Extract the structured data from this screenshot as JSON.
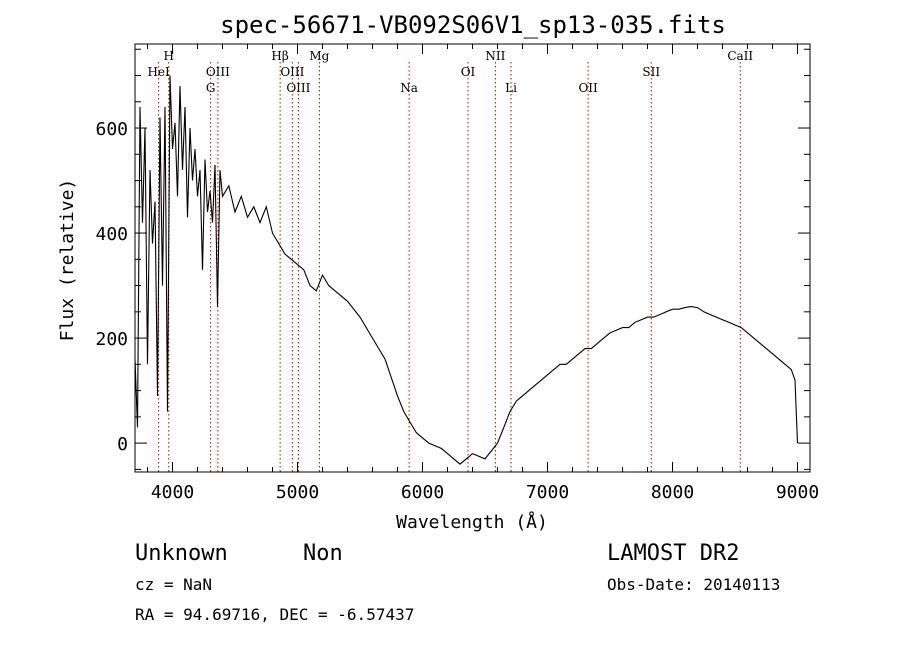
{
  "chart_data": {
    "type": "line",
    "title": "spec-56671-VB092S06V1_sp13-035.fits",
    "xlabel": "Wavelength (Å)",
    "ylabel": "Flux (relative)",
    "xlim": [
      3700,
      9100
    ],
    "ylim": [
      -55,
      760
    ],
    "x_ticks": [
      4000,
      5000,
      6000,
      7000,
      8000,
      9000
    ],
    "y_ticks": [
      0,
      200,
      400,
      600
    ],
    "grid": false,
    "spectral_lines": [
      {
        "name": "H",
        "wavelength": 3970
      },
      {
        "name": "HeI",
        "wavelength": 3889
      },
      {
        "name": "OIII",
        "wavelength": 4363
      },
      {
        "name": "G",
        "wavelength": 4305
      },
      {
        "name": "Hβ",
        "wavelength": 4861
      },
      {
        "name": "OIII",
        "wavelength": 4959
      },
      {
        "name": "OIII",
        "wavelength": 5007
      },
      {
        "name": "Mg",
        "wavelength": 5175
      },
      {
        "name": "Na",
        "wavelength": 5893
      },
      {
        "name": "OI",
        "wavelength": 6364
      },
      {
        "name": "NII",
        "wavelength": 6583
      },
      {
        "name": "Li",
        "wavelength": 6708
      },
      {
        "name": "OII",
        "wavelength": 7325
      },
      {
        "name": "SII",
        "wavelength": 7830
      },
      {
        "name": "CaII",
        "wavelength": 8542
      }
    ],
    "series": [
      {
        "x": [
          3700,
          3720,
          3740,
          3760,
          3780,
          3800,
          3820,
          3840,
          3860,
          3880,
          3900,
          3920,
          3940,
          3960,
          3980,
          4000,
          4020,
          4040,
          4060,
          4080,
          4100,
          4120,
          4140,
          4160,
          4180,
          4200,
          4220,
          4240,
          4260,
          4280,
          4300,
          4320,
          4340,
          4360,
          4380,
          4400,
          4450,
          4500,
          4550,
          4600,
          4650,
          4700,
          4750,
          4800,
          4850,
          4900,
          4950,
          5000,
          5050,
          5100,
          5150,
          5200,
          5250,
          5300,
          5400,
          5500,
          5600,
          5700,
          5800,
          5850,
          5900,
          5950,
          6000,
          6050,
          6100,
          6150,
          6200,
          6250,
          6300,
          6350,
          6400,
          6450,
          6500,
          6550,
          6600,
          6650,
          6700,
          6750,
          6800,
          6850,
          6900,
          6950,
          7000,
          7050,
          7100,
          7150,
          7200,
          7250,
          7300,
          7350,
          7400,
          7450,
          7500,
          7550,
          7600,
          7650,
          7700,
          7750,
          7800,
          7850,
          7900,
          7950,
          8000,
          8050,
          8100,
          8150,
          8200,
          8250,
          8300,
          8350,
          8400,
          8450,
          8500,
          8550,
          8600,
          8650,
          8700,
          8750,
          8800,
          8850,
          8900,
          8950,
          8980,
          9000
        ],
        "y": [
          160,
          30,
          640,
          420,
          600,
          150,
          520,
          380,
          460,
          90,
          620,
          300,
          640,
          60,
          700,
          560,
          610,
          470,
          680,
          520,
          640,
          430,
          600,
          500,
          560,
          470,
          520,
          330,
          540,
          440,
          480,
          420,
          530,
          260,
          520,
          470,
          490,
          440,
          470,
          430,
          450,
          420,
          450,
          400,
          380,
          360,
          350,
          340,
          330,
          300,
          290,
          320,
          300,
          290,
          270,
          240,
          200,
          160,
          90,
          60,
          40,
          20,
          10,
          0,
          -5,
          -10,
          -20,
          -30,
          -40,
          -30,
          -20,
          -25,
          -30,
          -15,
          0,
          30,
          60,
          80,
          90,
          100,
          110,
          120,
          130,
          140,
          150,
          150,
          160,
          170,
          180,
          180,
          190,
          200,
          210,
          215,
          220,
          220,
          230,
          235,
          240,
          240,
          245,
          250,
          255,
          255,
          258,
          260,
          258,
          250,
          245,
          240,
          235,
          230,
          225,
          220,
          210,
          200,
          190,
          180,
          170,
          160,
          150,
          140,
          120,
          0
        ]
      }
    ]
  },
  "info": {
    "class_label": "Unknown",
    "subclass_label": "Non",
    "cz_text": "cz = NaN",
    "radec_text": "RA =  94.69716, DEC =  -6.57437",
    "survey_label": "LAMOST DR2",
    "obs_date_text": "Obs-Date: 20140113"
  }
}
